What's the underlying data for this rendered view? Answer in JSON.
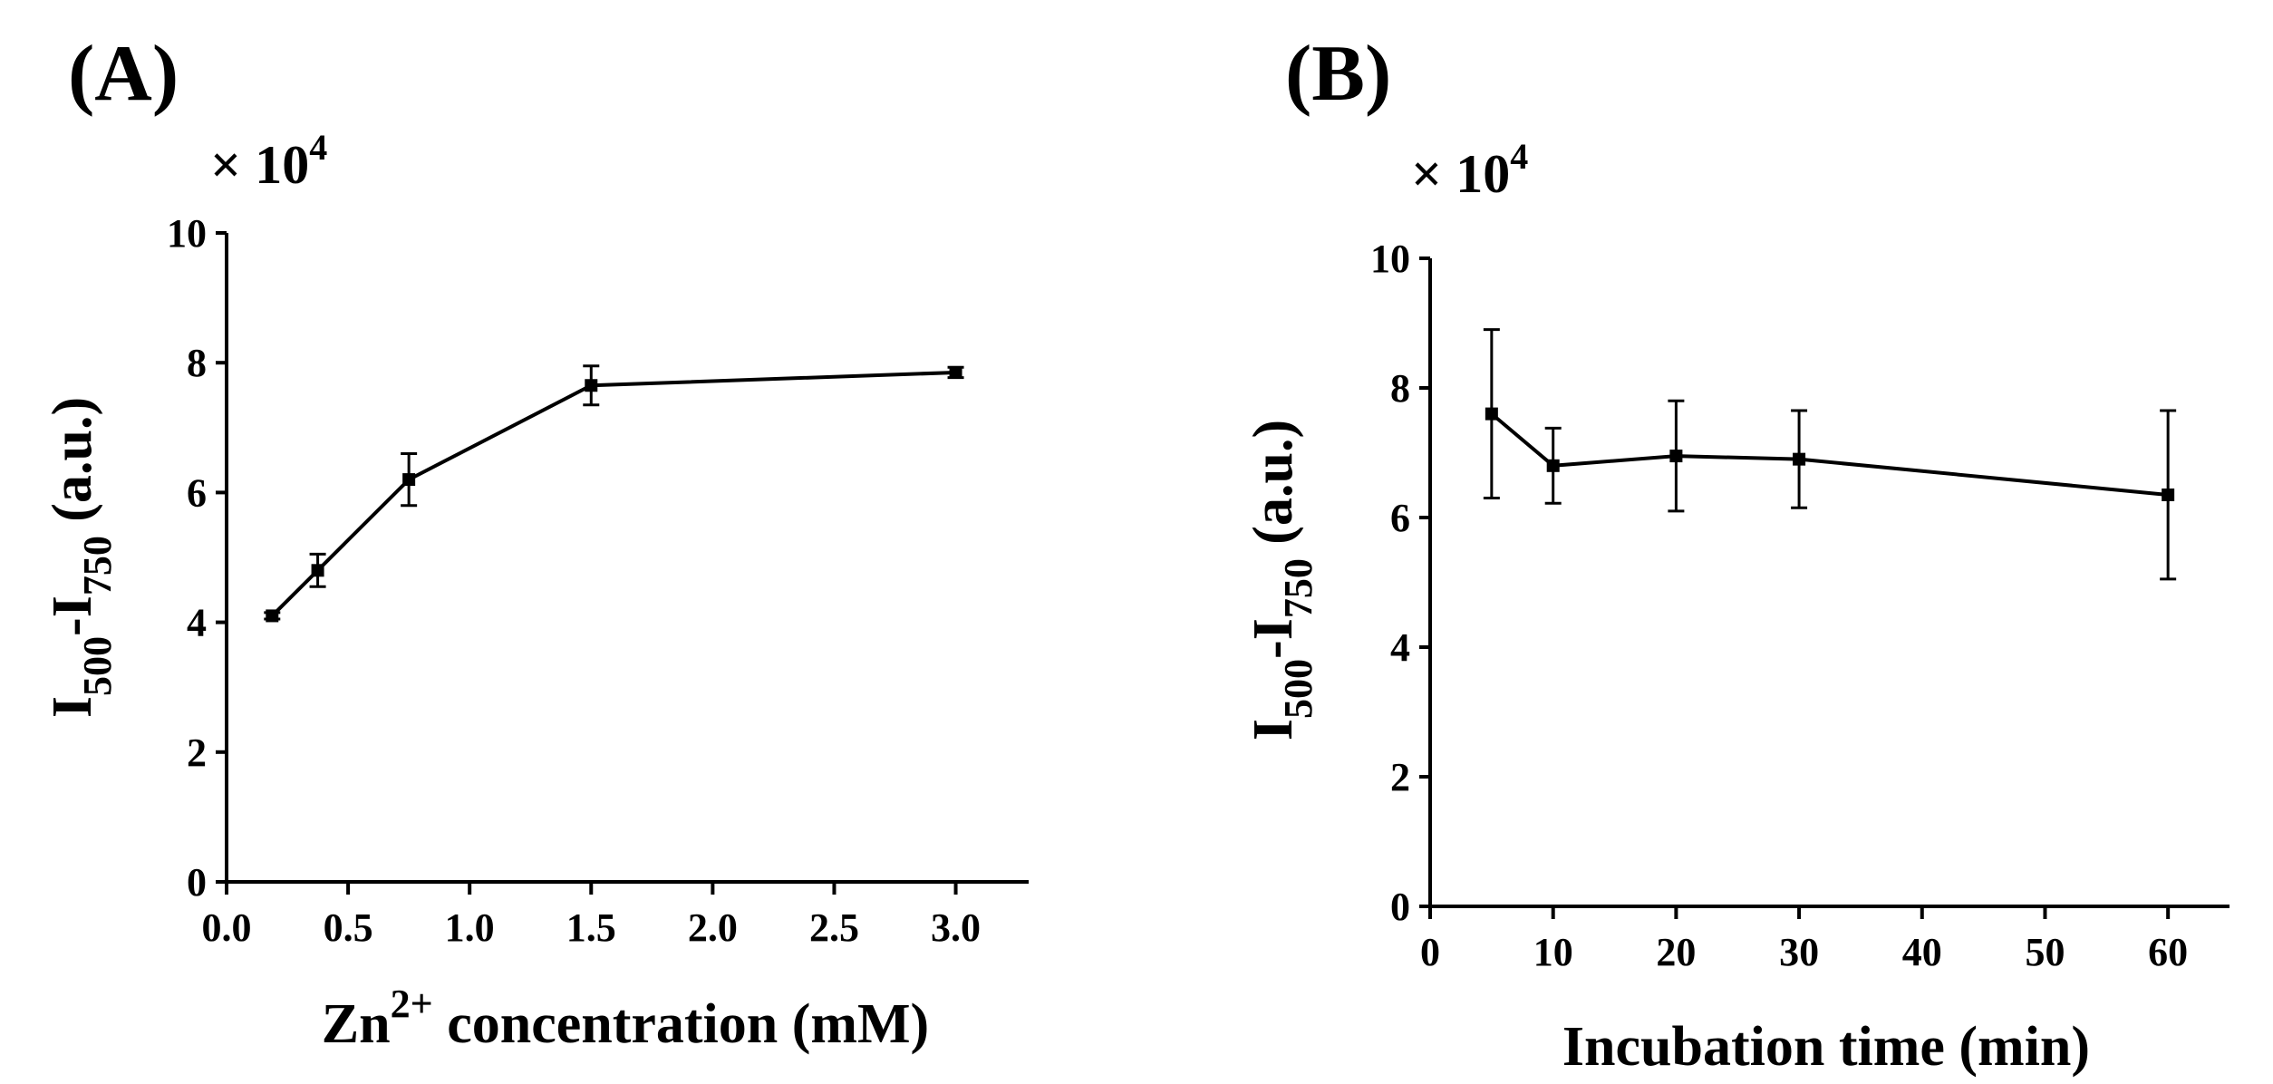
{
  "chart_data": [
    {
      "type": "line",
      "panel_label": "(A)",
      "multiplier": {
        "base": "× 10",
        "exponent": "4"
      },
      "xlabel": {
        "prefix": "Zn",
        "sup": "2+",
        "suffix": " concentration (mM)"
      },
      "ylabel": {
        "main": "I",
        "sub1": "500",
        "dash": "-I",
        "sub2": "750",
        "suffix": " (a.u.)"
      },
      "xlim": [
        0,
        3.3
      ],
      "ylim": [
        0,
        10
      ],
      "xticks": [
        "0.0",
        "0.5",
        "1.0",
        "1.5",
        "2.0",
        "2.5",
        "3.0"
      ],
      "yticks": [
        "0",
        "2",
        "4",
        "6",
        "8",
        "10"
      ],
      "series": [
        {
          "name": "Zn2+ concentration",
          "x": [
            0.1875,
            0.375,
            0.75,
            1.5,
            3.0
          ],
          "y": [
            4.1,
            4.8,
            6.2,
            7.65,
            7.85
          ],
          "err": [
            0.05,
            0.25,
            0.4,
            0.3,
            0.08
          ]
        }
      ]
    },
    {
      "type": "line",
      "panel_label": "(B)",
      "multiplier": {
        "base": "× 10",
        "exponent": "4"
      },
      "xlabel": {
        "prefix": "Incubation time (min)",
        "sup": "",
        "suffix": ""
      },
      "ylabel": {
        "main": "I",
        "sub1": "500",
        "dash": "-I",
        "sub2": "750",
        "suffix": " (a.u.)"
      },
      "xlim": [
        0,
        65
      ],
      "ylim": [
        0,
        10
      ],
      "xticks": [
        "0",
        "10",
        "20",
        "30",
        "40",
        "50",
        "60"
      ],
      "yticks": [
        "0",
        "2",
        "4",
        "6",
        "8",
        "10"
      ],
      "series": [
        {
          "name": "Incubation time",
          "x": [
            5,
            10,
            20,
            30,
            60
          ],
          "y": [
            7.6,
            6.8,
            6.95,
            6.9,
            6.35
          ],
          "err": [
            1.3,
            0.58,
            0.85,
            0.75,
            1.3
          ]
        }
      ]
    }
  ]
}
